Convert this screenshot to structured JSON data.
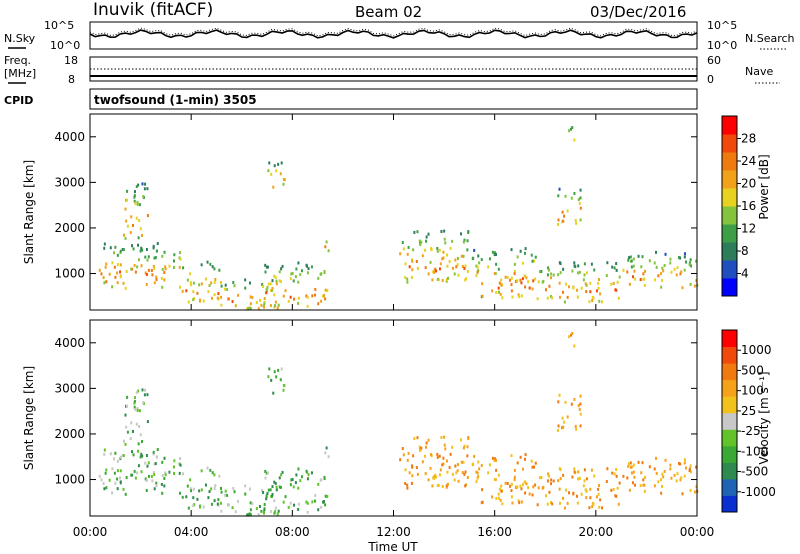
{
  "header": {
    "station": "Inuvik (fitACF)",
    "beam": "Beam 02",
    "date": "03/Dec/2016"
  },
  "side_labels": {
    "nsky": "N.Sky",
    "freq_line1": "Freq.",
    "freq_line2": "[MHz]",
    "cpid": "CPID",
    "nsearch": "N.Search",
    "nave": "Nave"
  },
  "cpid_text": "twofsound (1-min) 3505",
  "chart_data": [
    {
      "type": "line",
      "name": "noise",
      "left_ticks": [
        "10^5",
        "10^0"
      ],
      "right_ticks": [
        "10^5",
        "10^0"
      ]
    },
    {
      "type": "line",
      "name": "frequency",
      "left_ticks": [
        "18",
        "8"
      ],
      "right_ticks": [
        "60",
        "0"
      ]
    },
    {
      "type": "heatmap",
      "name": "power",
      "ylabel": "Slant Range [km]",
      "yticks": [
        "1000",
        "2000",
        "3000",
        "4000"
      ],
      "ylim": [
        200,
        4500
      ],
      "colorbar": {
        "label": "Power [dB]",
        "ticks": [
          "4",
          "8",
          "12",
          "16",
          "20",
          "24",
          "28"
        ],
        "colors": [
          "#0000ff",
          "#1f4fbf",
          "#2e7d5a",
          "#3c9f48",
          "#84c43c",
          "#e6d21f",
          "#f2a21a",
          "#ef7a10",
          "#ef4a0c",
          "#ff0000"
        ]
      }
    },
    {
      "type": "heatmap",
      "name": "velocity",
      "ylabel": "Slant Range [km]",
      "yticks": [
        "1000",
        "2000",
        "3000",
        "4000"
      ],
      "ylim": [
        200,
        4500
      ],
      "xlabel": "Time UT",
      "xticks": [
        "00:00",
        "04:00",
        "08:00",
        "12:00",
        "16:00",
        "20:00",
        "00:00"
      ],
      "colorbar": {
        "label": "Velocity [m s⁻¹]",
        "ticks": [
          "1000",
          "500",
          "100",
          "25",
          "-25",
          "-100",
          "-500",
          "-1000"
        ],
        "colors": [
          "#0a2fd0",
          "#1e63b4",
          "#2f8a50",
          "#3aa835",
          "#63c42a",
          "#c8c8c8",
          "#f3c21a",
          "#f5a11a",
          "#f07a10",
          "#ef4a0c",
          "#ff0000"
        ]
      }
    }
  ]
}
